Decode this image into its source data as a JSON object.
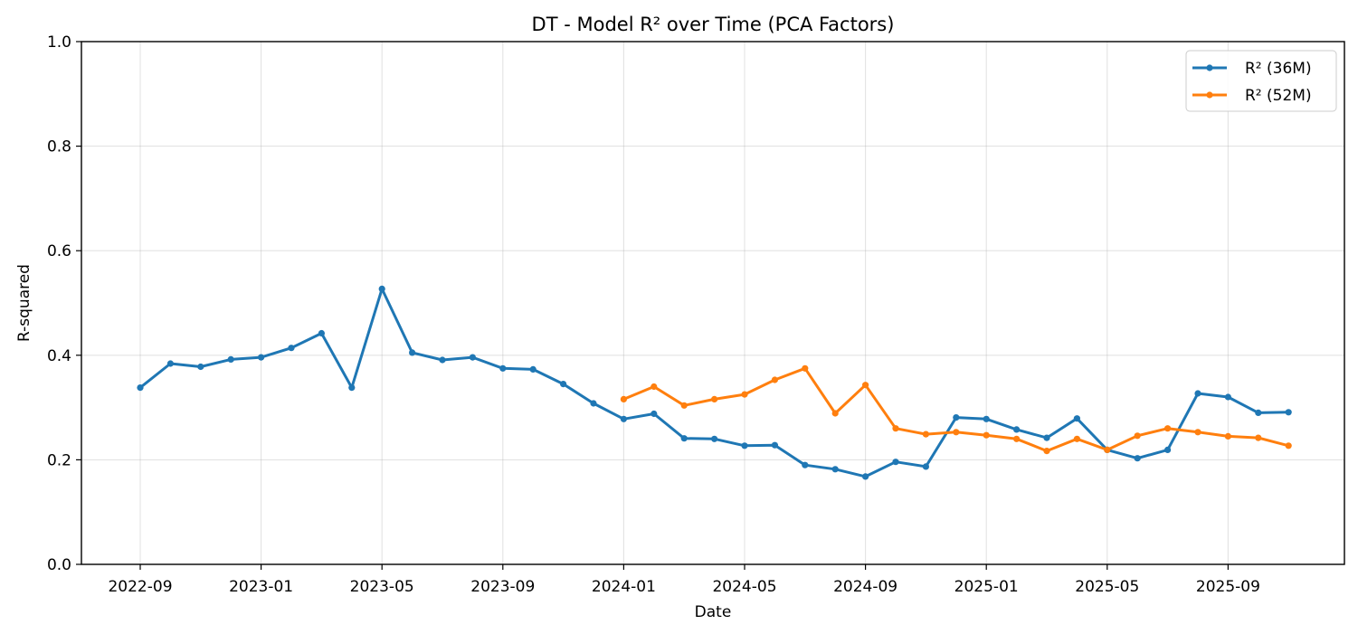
{
  "chart_data": {
    "type": "line",
    "title": "DT - Model R² over Time (PCA Factors)",
    "xlabel": "Date",
    "ylabel": "R-squared",
    "ylim": [
      0.0,
      1.0
    ],
    "yticks": [
      "0.0",
      "0.2",
      "0.4",
      "0.6",
      "0.8",
      "1.0"
    ],
    "xticks": [
      "2022-09",
      "2023-01",
      "2023-05",
      "2023-09",
      "2024-01",
      "2024-05",
      "2024-09",
      "2025-01",
      "2025-05",
      "2025-09"
    ],
    "grid": true,
    "legend_position": "top-right",
    "series": [
      {
        "name": "R² (36M)",
        "color": "#1f77b4",
        "points": [
          [
            "2022-09",
            0.338
          ],
          [
            "2022-10",
            0.384
          ],
          [
            "2022-11",
            0.378
          ],
          [
            "2022-12",
            0.392
          ],
          [
            "2023-01",
            0.396
          ],
          [
            "2023-02",
            0.414
          ],
          [
            "2023-03",
            0.442
          ],
          [
            "2023-04",
            0.338
          ],
          [
            "2023-05",
            0.527
          ],
          [
            "2023-06",
            0.405
          ],
          [
            "2023-07",
            0.391
          ],
          [
            "2023-08",
            0.396
          ],
          [
            "2023-09",
            0.375
          ],
          [
            "2023-10",
            0.373
          ],
          [
            "2023-11",
            0.345
          ],
          [
            "2023-12",
            0.308
          ],
          [
            "2024-01",
            0.278
          ],
          [
            "2024-02",
            0.288
          ],
          [
            "2024-03",
            0.241
          ],
          [
            "2024-04",
            0.24
          ],
          [
            "2024-05",
            0.227
          ],
          [
            "2024-06",
            0.228
          ],
          [
            "2024-07",
            0.19
          ],
          [
            "2024-08",
            0.182
          ],
          [
            "2024-09",
            0.168
          ],
          [
            "2024-10",
            0.196
          ],
          [
            "2024-11",
            0.187
          ],
          [
            "2024-12",
            0.281
          ],
          [
            "2025-01",
            0.278
          ],
          [
            "2025-02",
            0.258
          ],
          [
            "2025-03",
            0.242
          ],
          [
            "2025-04",
            0.279
          ],
          [
            "2025-05",
            0.219
          ],
          [
            "2025-06",
            0.203
          ],
          [
            "2025-07",
            0.219
          ],
          [
            "2025-08",
            0.327
          ],
          [
            "2025-09",
            0.32
          ],
          [
            "2025-10",
            0.29
          ],
          [
            "2025-11",
            0.291
          ]
        ]
      },
      {
        "name": "R² (52M)",
        "color": "#ff7f0e",
        "points": [
          [
            "2024-01",
            0.316
          ],
          [
            "2024-02",
            0.34
          ],
          [
            "2024-03",
            0.304
          ],
          [
            "2024-04",
            0.316
          ],
          [
            "2024-05",
            0.325
          ],
          [
            "2024-06",
            0.353
          ],
          [
            "2024-07",
            0.375
          ],
          [
            "2024-08",
            0.289
          ],
          [
            "2024-09",
            0.343
          ],
          [
            "2024-10",
            0.26
          ],
          [
            "2024-11",
            0.249
          ],
          [
            "2024-12",
            0.253
          ],
          [
            "2025-01",
            0.247
          ],
          [
            "2025-02",
            0.24
          ],
          [
            "2025-03",
            0.217
          ],
          [
            "2025-04",
            0.24
          ],
          [
            "2025-05",
            0.219
          ],
          [
            "2025-06",
            0.246
          ],
          [
            "2025-07",
            0.26
          ],
          [
            "2025-08",
            0.253
          ],
          [
            "2025-09",
            0.245
          ],
          [
            "2025-10",
            0.242
          ],
          [
            "2025-11",
            0.227
          ]
        ]
      }
    ]
  }
}
